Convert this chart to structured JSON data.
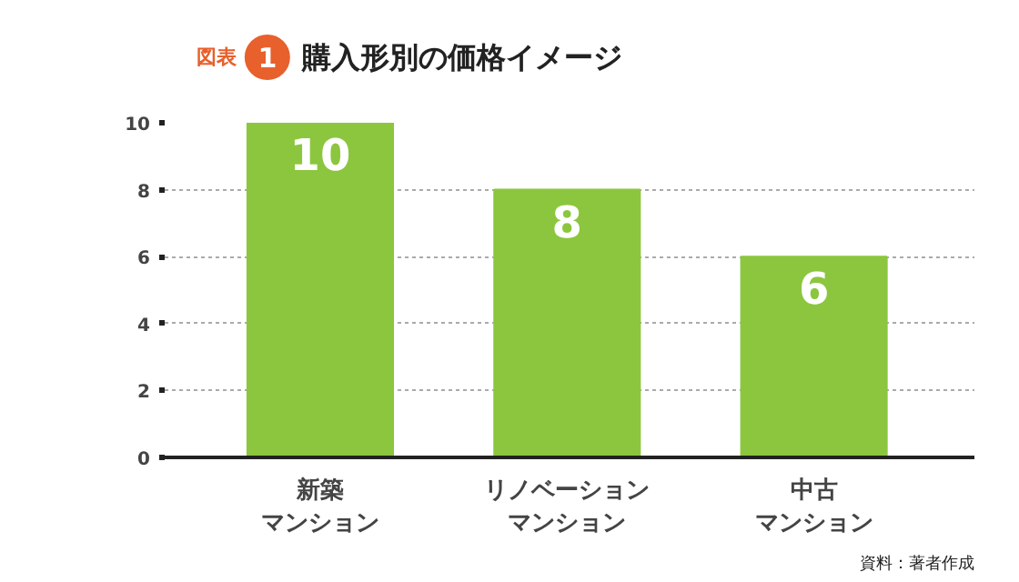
{
  "chart_data": {
    "type": "bar",
    "title": "購入形別の価格イメージ",
    "categories": [
      "新築マンション",
      "リノベーションマンション",
      "中古マンション"
    ],
    "values": [
      10,
      8,
      6
    ],
    "color": "#8cc63e",
    "data_labels": true,
    "ylim": [
      0,
      10
    ],
    "yticks": [
      0,
      2,
      4,
      6,
      8,
      10
    ],
    "grid": "y",
    "annotations": [
      "図表",
      "1",
      "資料：著者作成"
    ]
  }
}
